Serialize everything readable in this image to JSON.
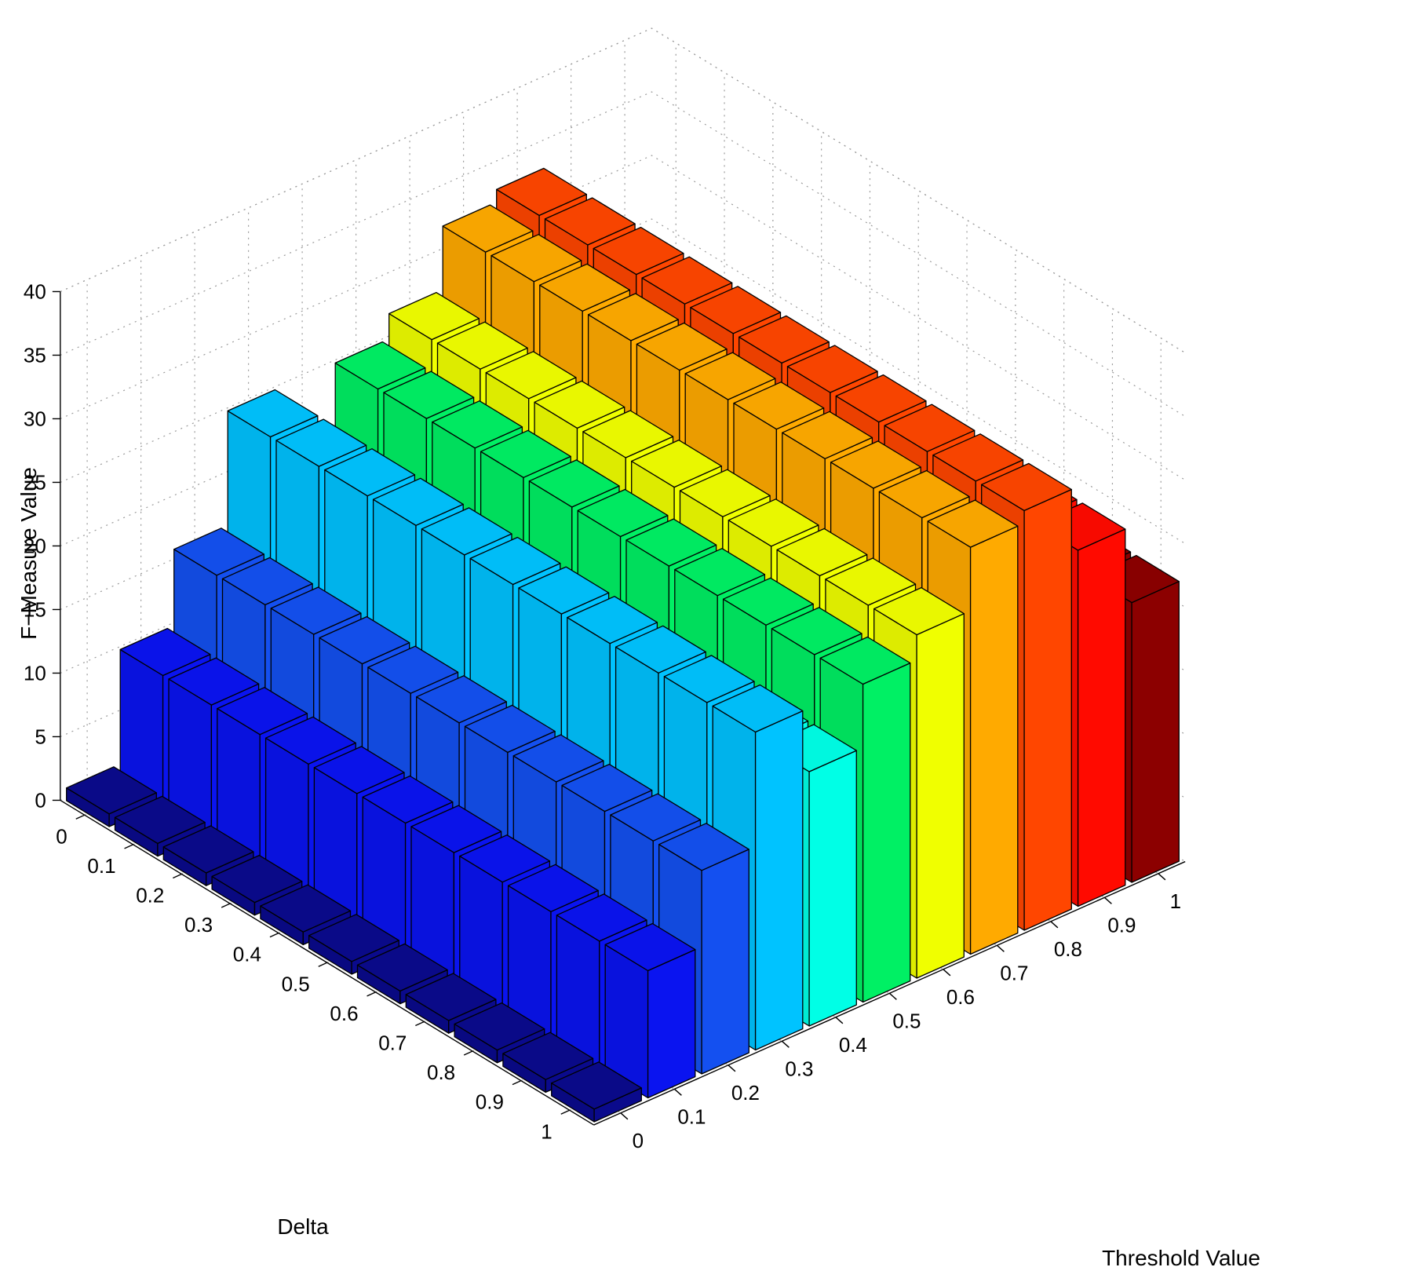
{
  "chart_data": {
    "type": "bar3d",
    "xlabel": "Delta",
    "ylabel": "Threshold Value",
    "zlabel": "F−Measure Value",
    "delta_ticks": [
      "0",
      "0.1",
      "0.2",
      "0.3",
      "0.4",
      "0.5",
      "0.6",
      "0.7",
      "0.8",
      "0.9",
      "1"
    ],
    "threshold_ticks": [
      "0",
      "0.1",
      "0.2",
      "0.3",
      "0.4",
      "0.5",
      "0.6",
      "0.7",
      "0.8",
      "0.9",
      "1"
    ],
    "z_ticks": [
      "0",
      "5",
      "10",
      "15",
      "20",
      "25",
      "30",
      "35",
      "40"
    ],
    "zlim": [
      0,
      40
    ],
    "grid": true,
    "colormap": "jet",
    "series_colors": [
      "#00008f",
      "#0000ff",
      "#0040ff",
      "#0060ff",
      "#00c0ff",
      "#00ffe0",
      "#00ff60",
      "#ffff00",
      "#ffa500",
      "#ff4000",
      "#ff0000",
      "#8b0000"
    ],
    "threshold_colors": [
      "#0a0a8c",
      "#0a14f0",
      "#1450f0",
      "#00c3ff",
      "#00ffe6",
      "#00f064",
      "#f0ff00",
      "#ffaa00",
      "#ff4600",
      "#ff0a00",
      "#8c0000"
    ],
    "values": [
      [
        1,
        10,
        16,
        25,
        20,
        25,
        27,
        32,
        33,
        28,
        22
      ],
      [
        1,
        10,
        16,
        25,
        20,
        25,
        27,
        32,
        33,
        28,
        22
      ],
      [
        1,
        10,
        16,
        25,
        20,
        25,
        27,
        32,
        33,
        28,
        22
      ],
      [
        1,
        10,
        16,
        25,
        20,
        25,
        27,
        32,
        33,
        28,
        22
      ],
      [
        1,
        10,
        16,
        25,
        20,
        25,
        27,
        32,
        33,
        28,
        22
      ],
      [
        1,
        10,
        16,
        25,
        20,
        25,
        27,
        32,
        33,
        28,
        22
      ],
      [
        1,
        10,
        16,
        25,
        20,
        25,
        27,
        32,
        33,
        28,
        22
      ],
      [
        1,
        10,
        16,
        25,
        20,
        25,
        27,
        32,
        33,
        28,
        22
      ],
      [
        1,
        10,
        16,
        25,
        20,
        25,
        27,
        32,
        33,
        28,
        22
      ],
      [
        1,
        10,
        16,
        25,
        20,
        25,
        27,
        32,
        33,
        28,
        22
      ],
      [
        1,
        10,
        16,
        25,
        20,
        25,
        27,
        32,
        33,
        28,
        22
      ]
    ]
  }
}
